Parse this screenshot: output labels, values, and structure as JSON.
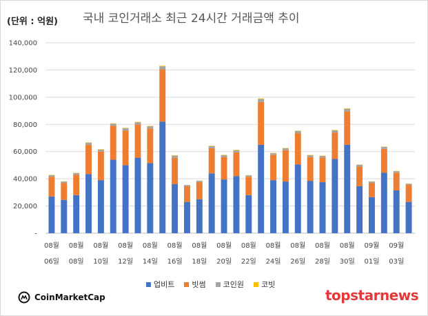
{
  "header": {
    "unit": "(단위 : 억원)",
    "title": "국내 코인거래소 최근 24시간 거래금액 추이"
  },
  "legend": [
    {
      "name": "업비트",
      "color": "#4472c4"
    },
    {
      "name": "빗썸",
      "color": "#ed7d31"
    },
    {
      "name": "코인원",
      "color": "#a5a5a5"
    },
    {
      "name": "코빗",
      "color": "#ffc000"
    }
  ],
  "footer": {
    "source_logo": "CoinMarketCap",
    "brand_logo": "topstarnews"
  },
  "chart_data": {
    "type": "bar",
    "stacked": true,
    "title": "국내 코인거래소 최근 24시간 거래금액 추이",
    "ylabel": "(단위 : 억원)",
    "ylim": [
      0,
      140000
    ],
    "yticks": [
      "-",
      "20,000",
      "40,000",
      "60,000",
      "80,000",
      "100,000",
      "120,000",
      "140,000"
    ],
    "grid": true,
    "legend_position": "bottom",
    "xtick_labels": [
      [
        "08월",
        "06일"
      ],
      [
        "08월",
        "08일"
      ],
      [
        "08월",
        "10일"
      ],
      [
        "08월",
        "12일"
      ],
      [
        "08월",
        "14일"
      ],
      [
        "08월",
        "16일"
      ],
      [
        "08월",
        "18일"
      ],
      [
        "08월",
        "20일"
      ],
      [
        "08월",
        "22일"
      ],
      [
        "08월",
        "24일"
      ],
      [
        "08월",
        "26일"
      ],
      [
        "08월",
        "28일"
      ],
      [
        "08월",
        "30일"
      ],
      [
        "09월",
        "01일"
      ],
      [
        "09월",
        "03일"
      ]
    ],
    "categories": [
      "08-06",
      "08-07",
      "08-08",
      "08-09",
      "08-10",
      "08-11",
      "08-12",
      "08-13",
      "08-14",
      "08-15",
      "08-16",
      "08-17",
      "08-18",
      "08-19",
      "08-20",
      "08-21",
      "08-22",
      "08-23",
      "08-24",
      "08-25",
      "08-26",
      "08-27",
      "08-28",
      "08-29",
      "08-30",
      "08-31",
      "09-01",
      "09-02",
      "09-03",
      "09-04"
    ],
    "series": [
      {
        "name": "업비트",
        "color": "#4472c4",
        "values": [
          27000,
          24500,
          28000,
          43500,
          39000,
          54000,
          50000,
          55500,
          51500,
          82000,
          36000,
          23000,
          25000,
          44000,
          39500,
          42000,
          28000,
          65000,
          39000,
          38000,
          50500,
          38500,
          37500,
          54500,
          65000,
          34500,
          26500,
          44500,
          31500,
          23000
        ]
      },
      {
        "name": "빗썸",
        "color": "#ed7d31",
        "values": [
          14500,
          12500,
          15000,
          21500,
          21000,
          25000,
          25500,
          24500,
          25500,
          38500,
          19500,
          11500,
          12500,
          18500,
          16500,
          17500,
          13500,
          31500,
          18500,
          23000,
          23000,
          17500,
          18000,
          19500,
          24500,
          14500,
          10500,
          17500,
          13000,
          12500
        ]
      },
      {
        "name": "코인원",
        "color": "#a5a5a5",
        "values": [
          1200,
          1000,
          1200,
          1500,
          1500,
          1500,
          1600,
          1600,
          1600,
          2200,
          1500,
          900,
          1000,
          1500,
          1400,
          1500,
          1000,
          2200,
          1300,
          1400,
          1600,
          1300,
          1300,
          1600,
          2000,
          1300,
          1000,
          1400,
          1100,
          900
        ]
      },
      {
        "name": "코빗",
        "color": "#ffc000",
        "values": [
          200,
          150,
          200,
          300,
          300,
          300,
          300,
          300,
          300,
          400,
          300,
          150,
          200,
          300,
          250,
          300,
          200,
          400,
          250,
          250,
          300,
          250,
          250,
          300,
          350,
          200,
          150,
          250,
          200,
          150
        ]
      }
    ]
  }
}
